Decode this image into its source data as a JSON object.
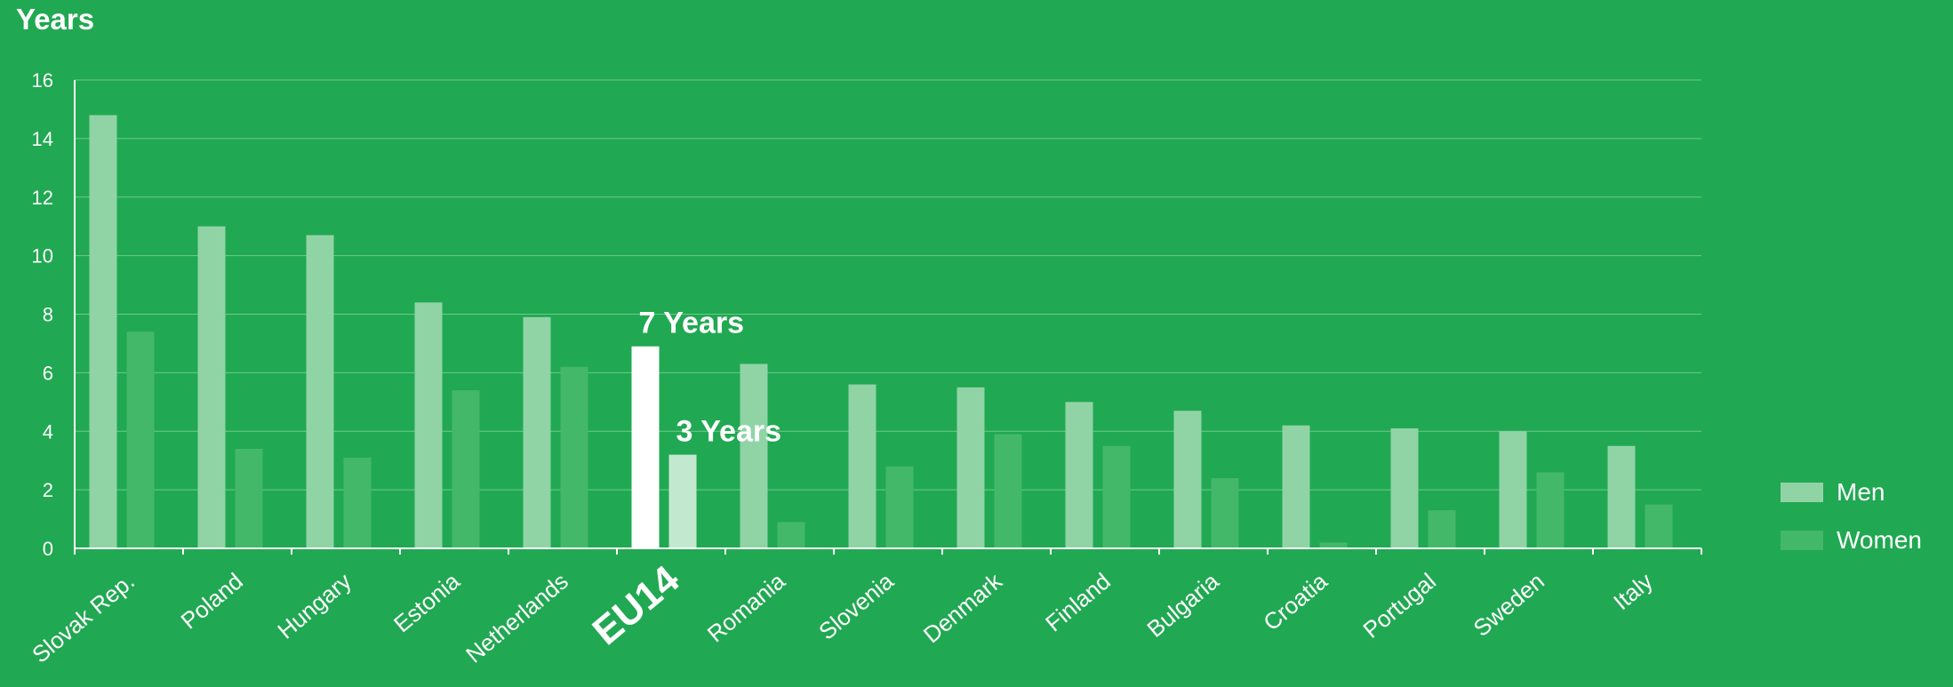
{
  "chart_data": {
    "type": "bar",
    "ylabel": "Years",
    "ylim": [
      0,
      16
    ],
    "yticks": [
      0,
      2,
      4,
      6,
      8,
      10,
      12,
      14,
      16
    ],
    "grid": true,
    "legend_position": "right",
    "categories": [
      "Slovak Rep.",
      "Poland",
      "Hungary",
      "Estonia",
      "Netherlands",
      "EU14",
      "Romania",
      "Slovenia",
      "Denmark",
      "Finland",
      "Bulgaria",
      "Croatia",
      "Portugal",
      "Sweden",
      "Italy"
    ],
    "highlight_category": "EU14",
    "series": [
      {
        "name": "Men",
        "color": "#90d4a6",
        "highlight_color": "#ffffff",
        "values": [
          14.8,
          11.0,
          10.7,
          8.4,
          7.9,
          6.9,
          6.3,
          5.6,
          5.5,
          5.0,
          4.7,
          4.2,
          4.1,
          4.0,
          3.5
        ]
      },
      {
        "name": "Women",
        "color": "#43b868",
        "highlight_color": "#c2e9cf",
        "values": [
          7.4,
          3.4,
          3.1,
          5.4,
          6.2,
          3.2,
          0.9,
          2.8,
          3.9,
          3.5,
          2.4,
          0.2,
          1.3,
          2.6,
          1.5
        ]
      }
    ],
    "annotations": [
      {
        "category": "EU14",
        "series": "Men",
        "text": "7 Years"
      },
      {
        "category": "EU14",
        "series": "Women",
        "text": "3 Years"
      }
    ]
  }
}
